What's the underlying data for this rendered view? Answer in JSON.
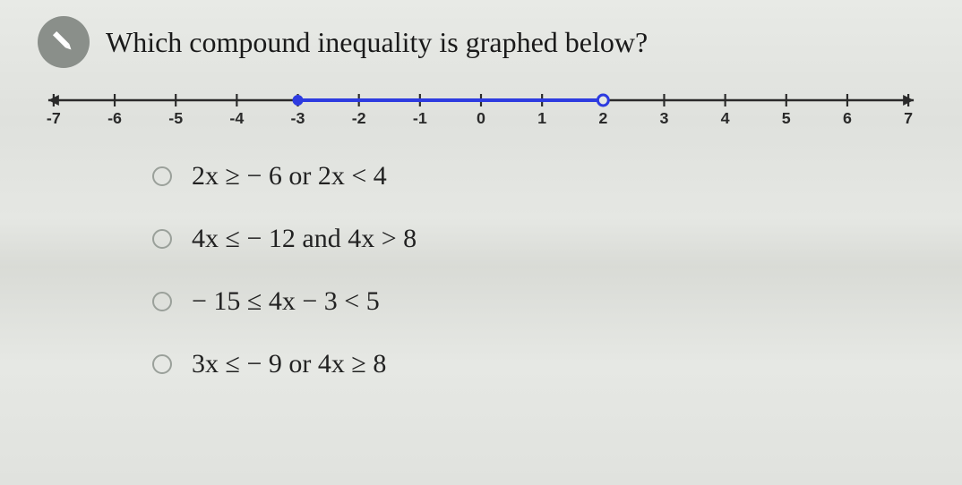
{
  "question": {
    "text": "Which compound inequality is graphed below?",
    "icon_name": "pencil-icon"
  },
  "numberline": {
    "min": -7,
    "max": 7,
    "tick_step": 1,
    "tick_labels": [
      "-7",
      "-6",
      "-5",
      "-4",
      "-3",
      "-2",
      "-1",
      "0",
      "1",
      "2",
      "3",
      "4",
      "5",
      "6",
      "7"
    ],
    "axis_color": "#2a2a2a",
    "segment": {
      "start_value": -3,
      "end_value": 2,
      "start_closed": true,
      "end_closed": false,
      "color": "#2d3be0"
    },
    "background": "#e6e8e4"
  },
  "options": [
    {
      "label": "2x  ≥  − 6  or  2x  <  4"
    },
    {
      "label": "4x  ≤  − 12  and  4x  >  8"
    },
    {
      "label": "− 15  ≤  4x − 3  <  5"
    },
    {
      "label": "3x  ≤  − 9  or  4x  ≥  8"
    }
  ],
  "style": {
    "question_fontsize": 32,
    "option_fontsize": 30,
    "radio_border_color": "#9aa09a",
    "body_bg_stops": [
      "#e8eae6",
      "#dfe1dd",
      "#e5e7e3",
      "#d9dbd6",
      "#e6e8e4",
      "#e0e2de"
    ]
  }
}
